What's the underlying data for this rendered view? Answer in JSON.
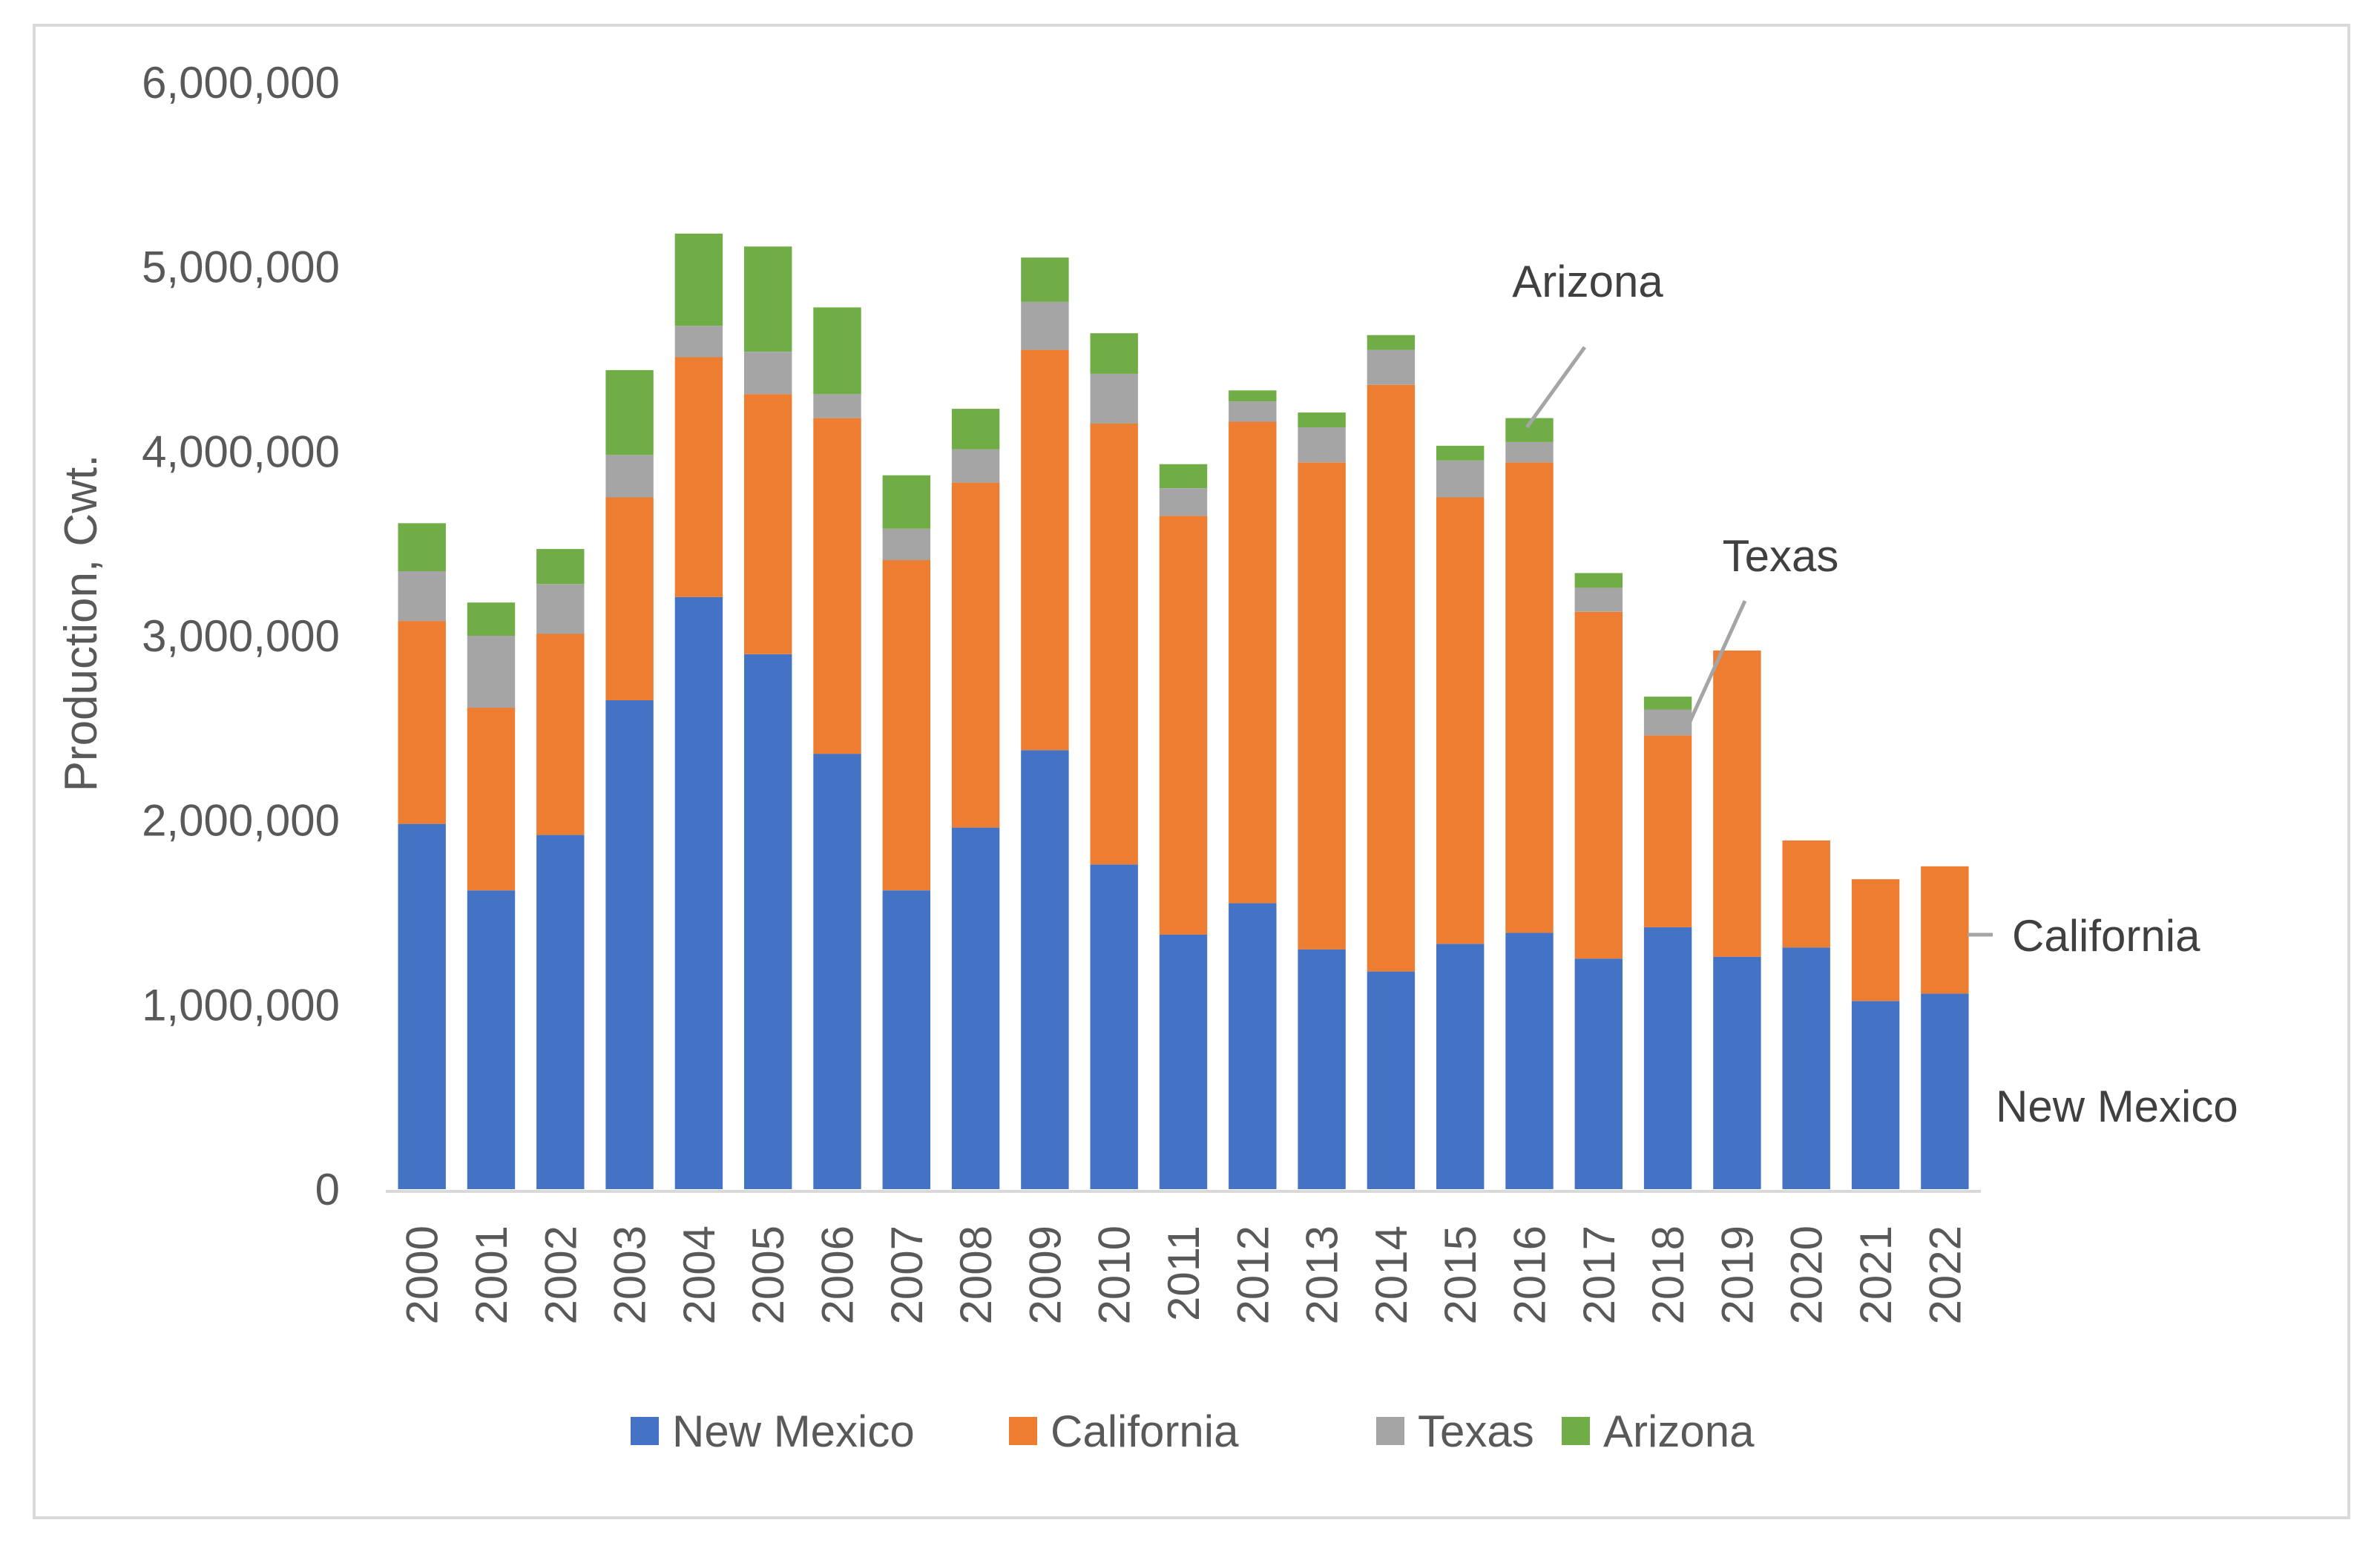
{
  "chart_data": {
    "type": "bar",
    "stacked": true,
    "title": "",
    "xlabel": "",
    "ylabel": "Production, Cwt.",
    "ylim": [
      0,
      6000000
    ],
    "yticks": [
      0,
      1000000,
      2000000,
      3000000,
      4000000,
      5000000,
      6000000
    ],
    "ytick_labels": [
      "0",
      "1,000,000",
      "2,000,000",
      "3,000,000",
      "4,000,000",
      "5,000,000",
      "6,000,000"
    ],
    "grid": false,
    "legend_position": "bottom",
    "categories": [
      "2000",
      "2001",
      "2002",
      "2003",
      "2004",
      "2005",
      "2006",
      "2007",
      "2008",
      "2009",
      "2010",
      "2011",
      "2012",
      "2013",
      "2014",
      "2015",
      "2016",
      "2017",
      "2018",
      "2019",
      "2020",
      "2021",
      "2022"
    ],
    "series": [
      {
        "name": "New Mexico",
        "color": "#4472c4",
        "values": [
          1980000,
          1620000,
          1920000,
          2650000,
          3210000,
          2900000,
          2360000,
          1620000,
          1960000,
          2380000,
          1760000,
          1380000,
          1550000,
          1300000,
          1180000,
          1330000,
          1390000,
          1250000,
          1420000,
          1260000,
          1310000,
          1020000,
          1060000
        ]
      },
      {
        "name": "California",
        "color": "#ed7d31",
        "values": [
          1100000,
          990000,
          1090000,
          1100000,
          1300000,
          1410000,
          1820000,
          1790000,
          1870000,
          2170000,
          2390000,
          2270000,
          2610000,
          2640000,
          3180000,
          2420000,
          2550000,
          1880000,
          1040000,
          1660000,
          580000,
          660000,
          690000
        ]
      },
      {
        "name": "Texas",
        "color": "#a5a5a5",
        "values": [
          270000,
          390000,
          270000,
          230000,
          170000,
          230000,
          130000,
          170000,
          180000,
          260000,
          270000,
          150000,
          110000,
          190000,
          190000,
          200000,
          110000,
          130000,
          140000,
          0,
          0,
          0,
          0
        ]
      },
      {
        "name": "Arizona",
        "color": "#70ad47",
        "values": [
          260000,
          180000,
          190000,
          460000,
          500000,
          570000,
          470000,
          290000,
          220000,
          240000,
          220000,
          130000,
          60000,
          80000,
          80000,
          80000,
          130000,
          80000,
          70000,
          0,
          0,
          0,
          0
        ]
      }
    ],
    "annotations": [
      "Arizona",
      "Texas",
      "California",
      "New Mexico"
    ]
  }
}
